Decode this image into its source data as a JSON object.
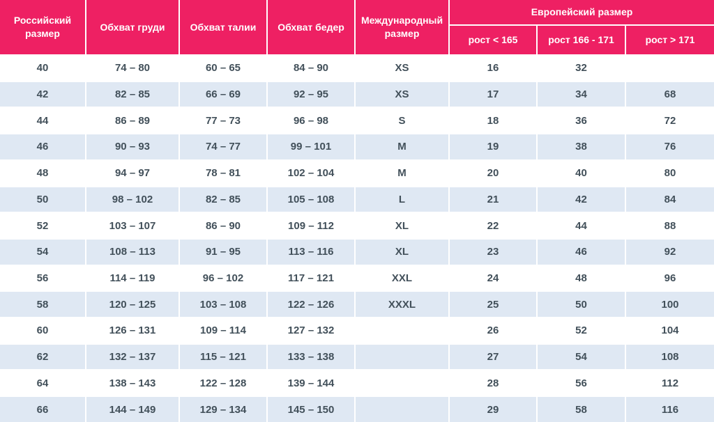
{
  "theme": {
    "header_bg": "#ee2063",
    "header_text": "#ffffff",
    "row_bg": "#ffffff",
    "row_alt_bg": "#dfe8f3",
    "cell_text": "#42505a",
    "divider": "#ffffff"
  },
  "chart_data": {
    "type": "table",
    "title": "",
    "header_groups": {
      "european_size": "Европейский размер"
    },
    "headers": {
      "russian_size": "Российский размер",
      "chest": "Обхват груди",
      "waist": "Обхват талии",
      "hips": "Обхват бедер",
      "international_size": "Международный размер",
      "height_lt_165": "рост < 165",
      "height_166_171": "рост 166 - 171",
      "height_gt_171": "рост > 171"
    },
    "columns": [
      "Российский размер",
      "Обхват груди",
      "Обхват талии",
      "Обхват бедер",
      "Международный размер",
      "Европейский размер: рост < 165",
      "Европейский размер: рост 166 - 171",
      "Европейский размер: рост > 171"
    ],
    "rows": [
      [
        "40",
        "74 – 80",
        "60 – 65",
        "84 – 90",
        "XS",
        "16",
        "32",
        ""
      ],
      [
        "42",
        "82 – 85",
        "66 – 69",
        "92 – 95",
        "XS",
        "17",
        "34",
        "68"
      ],
      [
        "44",
        "86 – 89",
        "77 – 73",
        "96 – 98",
        "S",
        "18",
        "36",
        "72"
      ],
      [
        "46",
        "90 – 93",
        "74 – 77",
        "99 – 101",
        "M",
        "19",
        "38",
        "76"
      ],
      [
        "48",
        "94 – 97",
        "78 – 81",
        "102 – 104",
        "M",
        "20",
        "40",
        "80"
      ],
      [
        "50",
        "98 – 102",
        "82 – 85",
        "105 – 108",
        "L",
        "21",
        "42",
        "84"
      ],
      [
        "52",
        "103 – 107",
        "86 – 90",
        "109 – 112",
        "XL",
        "22",
        "44",
        "88"
      ],
      [
        "54",
        "108 – 113",
        "91 – 95",
        "113 – 116",
        "XL",
        "23",
        "46",
        "92"
      ],
      [
        "56",
        "114 – 119",
        "96 – 102",
        "117 – 121",
        "XXL",
        "24",
        "48",
        "96"
      ],
      [
        "58",
        "120 – 125",
        "103 – 108",
        "122 – 126",
        "XXXL",
        "25",
        "50",
        "100"
      ],
      [
        "60",
        "126 – 131",
        "109 – 114",
        "127 – 132",
        "",
        "26",
        "52",
        "104"
      ],
      [
        "62",
        "132 – 137",
        "115 – 121",
        "133 – 138",
        "",
        "27",
        "54",
        "108"
      ],
      [
        "64",
        "138 – 143",
        "122 – 128",
        "139 – 144",
        "",
        "28",
        "56",
        "112"
      ],
      [
        "66",
        "144 – 149",
        "129 – 134",
        "145 – 150",
        "",
        "29",
        "58",
        "116"
      ]
    ]
  }
}
